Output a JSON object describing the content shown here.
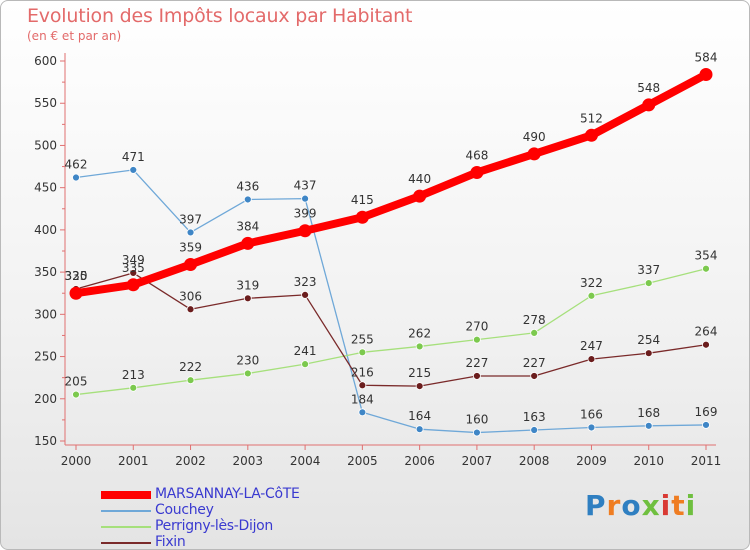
{
  "title": "Evolution des Impôts locaux par Habitant",
  "subtitle": "(en € et par an)",
  "logo": {
    "text": "Proxiti",
    "letters": [
      {
        "ch": "P",
        "color": "#2f7fc1"
      },
      {
        "ch": "r",
        "color": "#ef7d22"
      },
      {
        "ch": "o",
        "color": "#2f7fc1"
      },
      {
        "ch": "x",
        "color": "#6fbf3f"
      },
      {
        "ch": "i",
        "color": "#d93a34"
      },
      {
        "ch": "t",
        "color": "#ef7d22"
      },
      {
        "ch": "i",
        "color": "#6fbf3f"
      }
    ]
  },
  "chart_data": {
    "type": "line",
    "title": "Evolution des Impôts locaux par Habitant",
    "subtitle": "(en € et par an)",
    "xlabel": "",
    "ylabel": "",
    "categories": [
      "2000",
      "2001",
      "2002",
      "2003",
      "2004",
      "2005",
      "2006",
      "2007",
      "2008",
      "2009",
      "2010",
      "2011"
    ],
    "ylim": [
      150,
      600
    ],
    "yticks": [
      150,
      200,
      250,
      300,
      350,
      400,
      450,
      500,
      550,
      600
    ],
    "grid": false,
    "legend_position": "bottom-left",
    "series": [
      {
        "name": "MARSANNAY-LA-CôTE",
        "color": "#ff0000",
        "point_color": "#ff0000",
        "width": 8,
        "values": [
          325,
          335,
          359,
          384,
          399,
          415,
          440,
          468,
          490,
          512,
          548,
          584
        ]
      },
      {
        "name": "Couchey",
        "color": "#6fa8d8",
        "point_color": "#3f86c6",
        "width": 1.3,
        "values": [
          462,
          471,
          397,
          436,
          437,
          184,
          164,
          160,
          163,
          166,
          168,
          169
        ]
      },
      {
        "name": "Perrigny-lès-Dijon",
        "color": "#a6e07c",
        "point_color": "#7cc94e",
        "width": 1.3,
        "values": [
          205,
          213,
          222,
          230,
          241,
          255,
          262,
          270,
          278,
          322,
          337,
          354
        ]
      },
      {
        "name": "Fixin",
        "color": "#7a2a2a",
        "point_color": "#6b1d1d",
        "width": 1.3,
        "values": [
          330,
          349,
          306,
          319,
          323,
          216,
          215,
          227,
          227,
          247,
          254,
          264
        ]
      }
    ]
  }
}
